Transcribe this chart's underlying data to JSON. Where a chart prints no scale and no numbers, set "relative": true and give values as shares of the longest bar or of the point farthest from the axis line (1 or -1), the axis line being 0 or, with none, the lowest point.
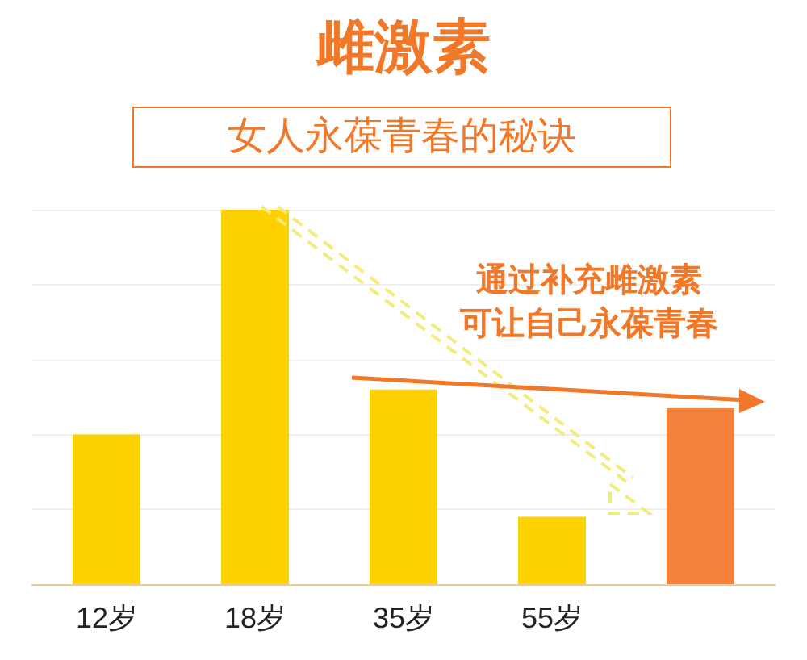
{
  "chart_data": {
    "type": "bar",
    "title": "雌激素",
    "subtitle": "女人永葆青春的秘诀",
    "annotations": [
      "通过补充雌激素",
      "可让自己永葆青春"
    ],
    "categories": [
      "12岁",
      "18岁",
      "35岁",
      "55岁",
      null
    ],
    "values": [
      0.4,
      1,
      0.52,
      0.18,
      0.47
    ],
    "colors": [
      "#fdd000",
      "#fdd000",
      "#fdd000",
      "#fdd000",
      "#f5823a"
    ],
    "relative": true,
    "grid": true
  }
}
